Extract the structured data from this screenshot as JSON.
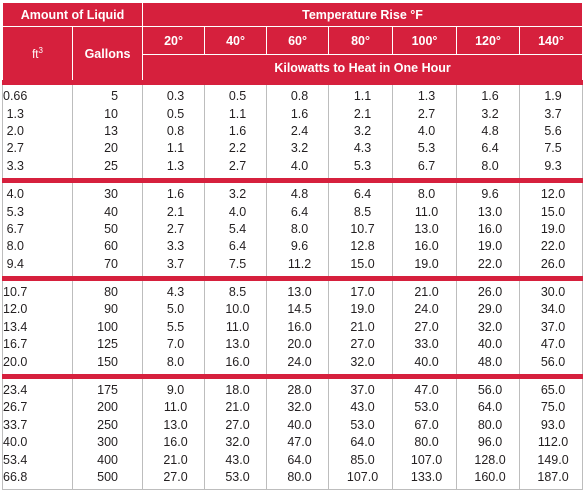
{
  "header": {
    "amount_label": "Amount of Liquid",
    "temp_rise_label": "Temperature Rise °F",
    "ft_label": "ft",
    "ft_sup": "3",
    "gallons_label": "Gallons",
    "kw_label": "Kilowatts to Heat in One Hour",
    "temps": [
      "20°",
      "40°",
      "60°",
      "80°",
      "100°",
      "120°",
      "140°"
    ]
  },
  "groups": [
    [
      {
        "ft3": "0.66",
        "gallons": "5",
        "kw": [
          "0.3",
          "0.5",
          "0.8",
          "1.1",
          "1.3",
          "1.6",
          "1.9"
        ]
      },
      {
        "ft3": "1.3",
        "gallons": "10",
        "kw": [
          "0.5",
          "1.1",
          "1.6",
          "2.1",
          "2.7",
          "3.2",
          "3.7"
        ]
      },
      {
        "ft3": "2.0",
        "gallons": "13",
        "kw": [
          "0.8",
          "1.6",
          "2.4",
          "3.2",
          "4.0",
          "4.8",
          "5.6"
        ]
      },
      {
        "ft3": "2.7",
        "gallons": "20",
        "kw": [
          "1.1",
          "2.2",
          "3.2",
          "4.3",
          "5.3",
          "6.4",
          "7.5"
        ]
      },
      {
        "ft3": "3.3",
        "gallons": "25",
        "kw": [
          "1.3",
          "2.7",
          "4.0",
          "5.3",
          "6.7",
          "8.0",
          "9.3"
        ]
      }
    ],
    [
      {
        "ft3": "4.0",
        "gallons": "30",
        "kw": [
          "1.6",
          "3.2",
          "4.8",
          "6.4",
          "8.0",
          "9.6",
          "12.0"
        ]
      },
      {
        "ft3": "5.3",
        "gallons": "40",
        "kw": [
          "2.1",
          "4.0",
          "6.4",
          "8.5",
          "11.0",
          "13.0",
          "15.0"
        ]
      },
      {
        "ft3": "6.7",
        "gallons": "50",
        "kw": [
          "2.7",
          "5.4",
          "8.0",
          "10.7",
          "13.0",
          "16.0",
          "19.0"
        ]
      },
      {
        "ft3": "8.0",
        "gallons": "60",
        "kw": [
          "3.3",
          "6.4",
          "9.6",
          "12.8",
          "16.0",
          "19.0",
          "22.0"
        ]
      },
      {
        "ft3": "9.4",
        "gallons": "70",
        "kw": [
          "3.7",
          "7.5",
          "11.2",
          "15.0",
          "19.0",
          "22.0",
          "26.0"
        ]
      }
    ],
    [
      {
        "ft3": "10.7",
        "gallons": "80",
        "kw": [
          "4.3",
          "8.5",
          "13.0",
          "17.0",
          "21.0",
          "26.0",
          "30.0"
        ]
      },
      {
        "ft3": "12.0",
        "gallons": "90",
        "kw": [
          "5.0",
          "10.0",
          "14.5",
          "19.0",
          "24.0",
          "29.0",
          "34.0"
        ]
      },
      {
        "ft3": "13.4",
        "gallons": "100",
        "kw": [
          "5.5",
          "11.0",
          "16.0",
          "21.0",
          "27.0",
          "32.0",
          "37.0"
        ]
      },
      {
        "ft3": "16.7",
        "gallons": "125",
        "kw": [
          "7.0",
          "13.0",
          "20.0",
          "27.0",
          "33.0",
          "40.0",
          "47.0"
        ]
      },
      {
        "ft3": "20.0",
        "gallons": "150",
        "kw": [
          "8.0",
          "16.0",
          "24.0",
          "32.0",
          "40.0",
          "48.0",
          "56.0"
        ]
      }
    ],
    [
      {
        "ft3": "23.4",
        "gallons": "175",
        "kw": [
          "9.0",
          "18.0",
          "28.0",
          "37.0",
          "47.0",
          "56.0",
          "65.0"
        ]
      },
      {
        "ft3": "26.7",
        "gallons": "200",
        "kw": [
          "11.0",
          "21.0",
          "32.0",
          "43.0",
          "53.0",
          "64.0",
          "75.0"
        ]
      },
      {
        "ft3": "33.7",
        "gallons": "250",
        "kw": [
          "13.0",
          "27.0",
          "40.0",
          "53.0",
          "67.0",
          "80.0",
          "93.0"
        ]
      },
      {
        "ft3": "40.0",
        "gallons": "300",
        "kw": [
          "16.0",
          "32.0",
          "47.0",
          "64.0",
          "80.0",
          "96.0",
          "112.0"
        ]
      },
      {
        "ft3": "53.4",
        "gallons": "400",
        "kw": [
          "21.0",
          "43.0",
          "64.0",
          "85.0",
          "107.0",
          "128.0",
          "149.0"
        ]
      },
      {
        "ft3": "66.8",
        "gallons": "500",
        "kw": [
          "27.0",
          "53.0",
          "80.0",
          "107.0",
          "133.0",
          "160.0",
          "187.0"
        ]
      }
    ]
  ]
}
